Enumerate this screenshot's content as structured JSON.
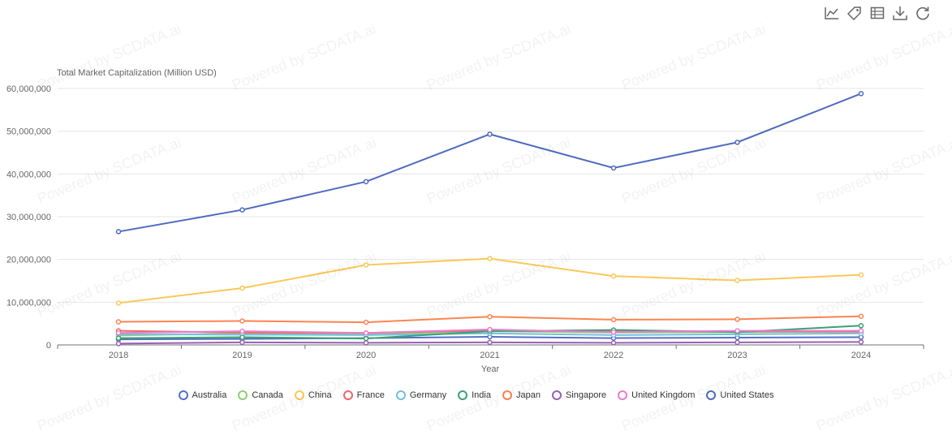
{
  "toolbox": {
    "icons": [
      "line-chart-icon",
      "tag-icon",
      "data-table-icon",
      "download-icon",
      "refresh-icon"
    ]
  },
  "watermark": "Powered by SCDATA.ai",
  "chart_data": {
    "type": "line",
    "title": "",
    "ylabel": "Total Market Capitalization (Million USD)",
    "xlabel": "Year",
    "categories": [
      "2018",
      "2019",
      "2020",
      "2021",
      "2022",
      "2023",
      "2024"
    ],
    "ylim": [
      0,
      60000000
    ],
    "yticks": [
      "0",
      "10,000,000",
      "20,000,000",
      "30,000,000",
      "40,000,000",
      "50,000,000",
      "60,000,000"
    ],
    "grid": true,
    "legend_position": "bottom",
    "series": [
      {
        "name": "Australia",
        "color": "#5470c6",
        "values": [
          1300000,
          1400000,
          1600000,
          1900000,
          1600000,
          1700000,
          1800000
        ]
      },
      {
        "name": "Canada",
        "color": "#91cc75",
        "values": [
          2200000,
          2700000,
          2600000,
          3200000,
          2900000,
          3000000,
          3100000
        ]
      },
      {
        "name": "China",
        "color": "#fac858",
        "values": [
          9800000,
          13300000,
          18700000,
          20200000,
          16100000,
          15100000,
          16400000
        ]
      },
      {
        "name": "France",
        "color": "#ee6666",
        "values": [
          3300000,
          2900000,
          2800000,
          3400000,
          3100000,
          3200000,
          3100000
        ]
      },
      {
        "name": "Germany",
        "color": "#73c0de",
        "values": [
          2500000,
          2400000,
          2300000,
          2700000,
          2300000,
          2500000,
          2700000
        ]
      },
      {
        "name": "India",
        "color": "#3ba272",
        "values": [
          1600000,
          1800000,
          1500000,
          3200000,
          3500000,
          3000000,
          4500000
        ]
      },
      {
        "name": "Japan",
        "color": "#fc8452",
        "values": [
          5400000,
          5600000,
          5300000,
          6600000,
          5900000,
          6000000,
          6700000
        ]
      },
      {
        "name": "Singapore",
        "color": "#9a60b4",
        "values": [
          300000,
          600000,
          500000,
          600000,
          500000,
          600000,
          700000
        ]
      },
      {
        "name": "United Kingdom",
        "color": "#ea7ccc",
        "values": [
          2800000,
          3200000,
          2800000,
          3600000,
          3000000,
          3300000,
          3300000
        ]
      },
      {
        "name": "United States",
        "color": "#4f6bbf",
        "values": [
          26500000,
          31600000,
          38200000,
          49300000,
          41400000,
          47400000,
          58800000
        ]
      }
    ]
  }
}
